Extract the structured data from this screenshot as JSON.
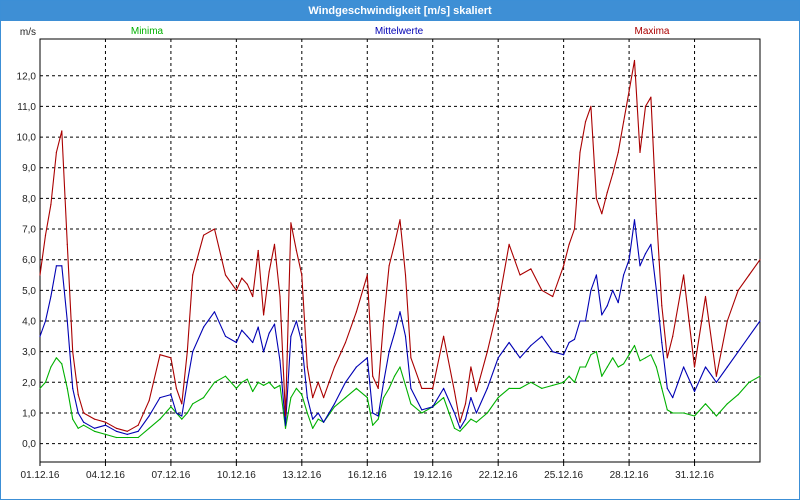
{
  "window": {
    "title": "Windgeschwindigkeit [m/s] skaliert"
  },
  "colors": {
    "minima": "#00b000",
    "mittelwerte": "#0000b4",
    "maxima": "#aa0000",
    "grid": "#000000",
    "titlebar": "#3e8fd5"
  },
  "chart_data": {
    "type": "line",
    "title": "Windgeschwindigkeit [m/s] skaliert",
    "ylabel": "m/s",
    "ylim": [
      -0.6,
      13.2
    ],
    "xlim": [
      0,
      33
    ],
    "yticks": [
      "0,0",
      "1,0",
      "2,0",
      "3,0",
      "4,0",
      "5,0",
      "6,0",
      "7,0",
      "8,0",
      "9,0",
      "10,0",
      "11,0",
      "12,0"
    ],
    "xticks": [
      "01.12.16",
      "04.12.16",
      "07.12.16",
      "10.12.16",
      "13.12.16",
      "16.12.16",
      "19.12.16",
      "22.12.16",
      "25.12.16",
      "28.12.16",
      "31.12.16"
    ],
    "grid": true,
    "legend_position": "top",
    "x": [
      0,
      0.25,
      0.5,
      0.75,
      1,
      1.25,
      1.5,
      1.75,
      2,
      2.5,
      3,
      3.5,
      4,
      4.5,
      5,
      5.5,
      6,
      6.25,
      6.5,
      6.75,
      7,
      7.5,
      8,
      8.5,
      9,
      9.25,
      9.5,
      9.75,
      10,
      10.25,
      10.5,
      10.75,
      11,
      11.25,
      11.5,
      11.75,
      12,
      12.25,
      12.5,
      12.75,
      13,
      13.5,
      14,
      14.5,
      15,
      15.25,
      15.5,
      15.75,
      16,
      16.25,
      16.5,
      16.75,
      17,
      17.5,
      18,
      18.5,
      19,
      19.25,
      19.5,
      19.75,
      20,
      20.5,
      21,
      21.5,
      22,
      22.5,
      23,
      23.5,
      24,
      24.25,
      24.5,
      24.75,
      25,
      25.25,
      25.5,
      25.75,
      26,
      26.25,
      26.5,
      26.75,
      27,
      27.25,
      27.5,
      27.75,
      28,
      28.25,
      28.5,
      28.75,
      29,
      29.5,
      30,
      30.5,
      31,
      31.5,
      32,
      32.5,
      33
    ],
    "series": [
      {
        "name": "Minima",
        "values": [
          1.8,
          2.0,
          2.5,
          2.8,
          2.6,
          1.8,
          0.8,
          0.5,
          0.6,
          0.4,
          0.3,
          0.2,
          0.2,
          0.2,
          0.5,
          0.8,
          1.2,
          1.0,
          0.8,
          1.0,
          1.3,
          1.5,
          2.0,
          2.2,
          1.8,
          2.0,
          2.1,
          1.7,
          2.0,
          1.9,
          2.0,
          1.8,
          1.9,
          0.5,
          1.5,
          1.8,
          1.6,
          1.0,
          0.5,
          0.8,
          0.7,
          1.2,
          1.5,
          1.8,
          1.5,
          0.6,
          0.8,
          1.5,
          1.8,
          2.2,
          2.5,
          1.9,
          1.3,
          1.0,
          1.2,
          1.5,
          0.5,
          0.4,
          0.6,
          0.8,
          0.7,
          1.0,
          1.5,
          1.8,
          1.8,
          2.0,
          1.8,
          1.9,
          2.0,
          2.2,
          2.0,
          2.5,
          2.5,
          2.9,
          3.0,
          2.2,
          2.5,
          2.8,
          2.5,
          2.6,
          2.9,
          3.2,
          2.7,
          2.8,
          2.9,
          2.5,
          1.8,
          1.1,
          1.0,
          1.0,
          0.9,
          1.3,
          0.9,
          1.3,
          1.6,
          2.0,
          2.2
        ]
      },
      {
        "name": "Mittelwerte",
        "values": [
          3.5,
          4.0,
          4.8,
          5.8,
          5.8,
          4.0,
          1.8,
          1.0,
          0.7,
          0.5,
          0.6,
          0.4,
          0.3,
          0.4,
          0.9,
          1.5,
          1.6,
          1.0,
          0.9,
          2.0,
          3.0,
          3.8,
          4.3,
          3.5,
          3.3,
          3.7,
          3.5,
          3.3,
          3.8,
          3.0,
          3.6,
          3.9,
          2.7,
          0.6,
          3.5,
          4.0,
          3.3,
          1.5,
          0.8,
          1.0,
          0.7,
          1.3,
          2.0,
          2.5,
          2.8,
          1.0,
          0.9,
          2.0,
          3.0,
          3.6,
          4.3,
          3.5,
          1.8,
          1.1,
          1.2,
          1.8,
          1.0,
          0.5,
          0.8,
          1.5,
          1.0,
          1.8,
          2.8,
          3.3,
          2.8,
          3.2,
          3.5,
          3.0,
          2.9,
          3.3,
          3.4,
          4.0,
          4.0,
          5.0,
          5.5,
          4.2,
          4.5,
          5.0,
          4.6,
          5.5,
          6.0,
          7.3,
          5.8,
          6.2,
          6.5,
          5.0,
          3.3,
          1.8,
          1.5,
          2.5,
          1.7,
          2.5,
          2.0,
          2.5,
          3.0,
          3.5,
          4.0
        ]
      },
      {
        "name": "Maxima",
        "values": [
          5.5,
          6.8,
          7.8,
          9.5,
          10.2,
          6.5,
          3.0,
          1.6,
          1.0,
          0.8,
          0.7,
          0.5,
          0.4,
          0.6,
          1.4,
          2.9,
          2.8,
          1.8,
          1.3,
          3.0,
          5.5,
          6.8,
          7.0,
          5.5,
          5.0,
          5.4,
          5.2,
          4.8,
          6.3,
          4.2,
          5.6,
          6.5,
          4.8,
          0.9,
          7.2,
          6.3,
          5.5,
          2.5,
          1.5,
          2.0,
          1.5,
          2.5,
          3.3,
          4.3,
          5.5,
          2.2,
          1.8,
          4.0,
          5.8,
          6.5,
          7.3,
          5.5,
          2.8,
          1.8,
          1.8,
          3.5,
          1.7,
          0.7,
          1.3,
          2.5,
          1.7,
          3.0,
          4.5,
          6.5,
          5.5,
          5.7,
          5.0,
          4.8,
          5.8,
          6.5,
          7.0,
          9.5,
          10.5,
          11.0,
          8.0,
          7.5,
          8.2,
          8.8,
          9.5,
          10.5,
          11.5,
          12.5,
          9.5,
          11.0,
          11.3,
          7.5,
          4.5,
          2.8,
          3.5,
          5.5,
          2.5,
          4.8,
          2.2,
          4.0,
          5.0,
          5.5,
          6.0
        ]
      }
    ]
  }
}
